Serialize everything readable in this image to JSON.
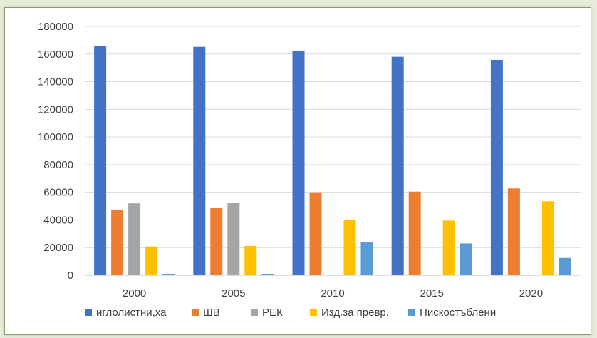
{
  "chart_data": {
    "type": "bar",
    "title": "",
    "xlabel": "",
    "ylabel": "",
    "categories": [
      "2000",
      "2005",
      "2010",
      "2015",
      "2020"
    ],
    "ylim": [
      0,
      180000
    ],
    "yticks": [
      "0",
      "20000",
      "40000",
      "60000",
      "80000",
      "100000",
      "120000",
      "140000",
      "160000",
      "180000"
    ],
    "grid": true,
    "legend_position": "bottom",
    "series": [
      {
        "name": "иглолистни,ха",
        "color": "#4472C4",
        "values": [
          166000,
          165200,
          162500,
          158000,
          155800
        ]
      },
      {
        "name": "ШВ",
        "color": "#ED7D31",
        "values": [
          47500,
          48500,
          60000,
          60500,
          62800
        ]
      },
      {
        "name": "РЕК",
        "color": "#A5A5A5",
        "values": [
          52000,
          52500,
          0,
          0,
          0
        ]
      },
      {
        "name": "Изд.за превр.",
        "color": "#FFC000",
        "values": [
          20800,
          21200,
          40000,
          39500,
          53500
        ]
      },
      {
        "name": "Нискостъблени",
        "color": "#5B9BD5",
        "values": [
          1000,
          1000,
          24000,
          23000,
          12500
        ]
      }
    ]
  }
}
